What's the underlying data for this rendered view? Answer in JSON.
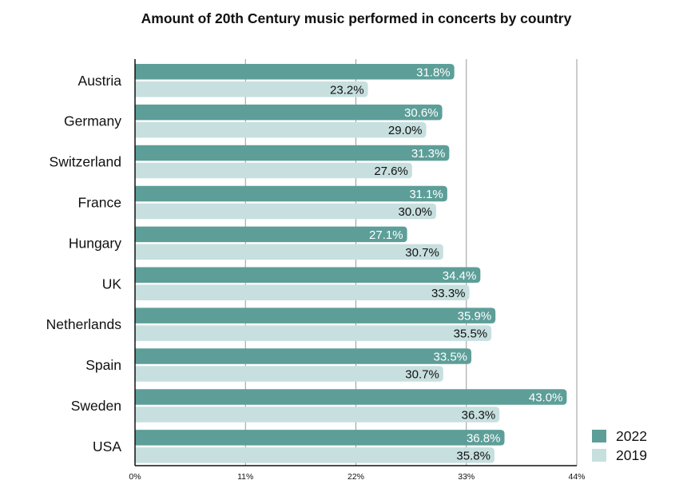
{
  "chart_data": {
    "type": "bar",
    "orientation": "horizontal",
    "title": "Amount of 20th Century music performed in concerts by country",
    "categories": [
      "Austria",
      "Germany",
      "Switzerland",
      "France",
      "Hungary",
      "UK",
      "Netherlands",
      "Spain",
      "Sweden",
      "USA"
    ],
    "series": [
      {
        "name": "2022",
        "color": "#5d9e98",
        "values": [
          31.8,
          30.6,
          31.3,
          31.1,
          27.1,
          34.4,
          35.9,
          33.5,
          43.0,
          36.8
        ]
      },
      {
        "name": "2019",
        "color": "#c7dfdf",
        "values": [
          23.2,
          29.0,
          27.6,
          30.0,
          30.7,
          33.3,
          35.5,
          30.7,
          36.3,
          35.8
        ]
      }
    ],
    "xlim": [
      0,
      44
    ],
    "xticks": [
      0,
      11,
      22,
      33,
      44
    ],
    "tick_suffix": "%",
    "value_format": "one decimal with %",
    "grid": "vertical",
    "legend_position": "bottom-right"
  }
}
